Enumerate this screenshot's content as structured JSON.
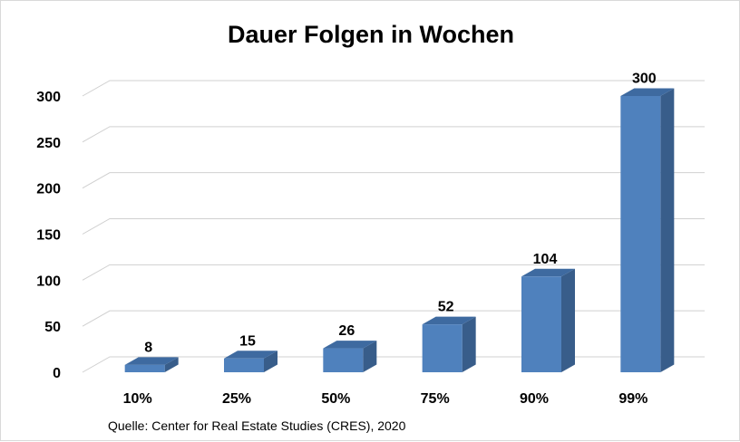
{
  "chart_data": {
    "type": "bar",
    "title": "Dauer Folgen in Wochen",
    "categories": [
      "10%",
      "25%",
      "50%",
      "75%",
      "90%",
      "99%"
    ],
    "values": [
      8,
      15,
      26,
      52,
      104,
      300
    ],
    "data_labels": [
      "8",
      "15",
      "26",
      "52",
      "104",
      "300"
    ],
    "y_ticks": [
      "0",
      "50",
      "100",
      "150",
      "200",
      "250",
      "300"
    ],
    "ylim": [
      0,
      300
    ],
    "grid": true,
    "three_d": true,
    "legend": "none",
    "bar_color": "#4f81bd",
    "bar_side_color": "#385d8a",
    "bar_top_color": "#3e6aa0",
    "source": "Quelle: Center for Real Estate Studies (CRES), 2020"
  }
}
